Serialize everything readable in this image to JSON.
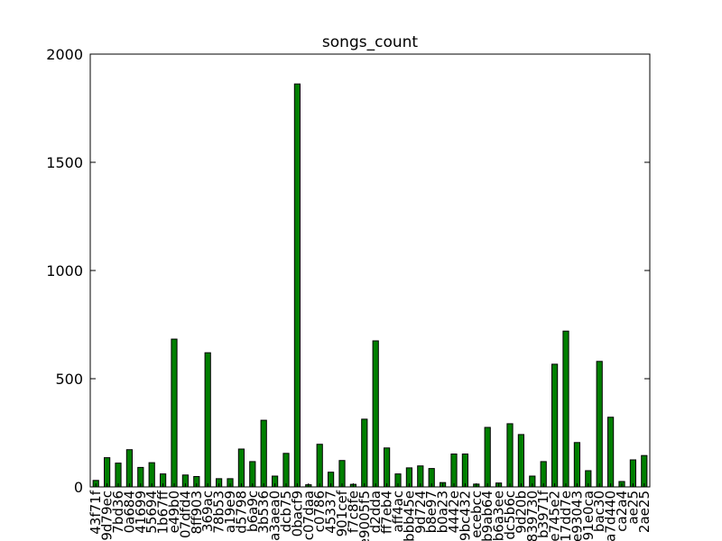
{
  "chart_data": {
    "type": "bar",
    "title": "songs_count",
    "xlabel": "",
    "ylabel": "",
    "ylim": [
      0,
      2000
    ],
    "yticks": [
      0,
      500,
      1000,
      1500,
      2000
    ],
    "grid": false,
    "legend": "none",
    "bar_color": "#007f00",
    "categories": [
      "43f71f",
      "9d79ec",
      "7bd36",
      "0a684",
      "41699",
      "55694",
      "1b67ff",
      "e49b0",
      "07dfd4",
      "8ff903",
      "369ac",
      "78b53",
      "a19e9",
      "d5798",
      "b6a9c",
      "3b536",
      "a3aea0",
      "dcb75",
      "0bacf9",
      "c07daa",
      "c0786",
      "45337",
      "901cef",
      "f7c8fe",
      "e9005f5",
      "d2dda",
      "ff7eb4",
      "aff4ac",
      "bbb45e",
      "9d724",
      "b8e97",
      "b0a23",
      "4442e",
      "9bc432",
      "ecebcc",
      "b9ab64",
      "b6a3ee",
      "dc5b6c",
      "9d20b",
      "839730",
      "b3971f",
      "e745e2",
      "17dd7e",
      "e93043",
      "91e0ca",
      "bac30",
      "a7d440",
      "ca2a4",
      "ae25",
      "2ae25"
    ],
    "values": [
      30,
      135,
      110,
      172,
      90,
      112,
      60,
      683,
      55,
      48,
      620,
      38,
      38,
      175,
      117,
      308,
      50,
      155,
      1862,
      10,
      197,
      68,
      122,
      12,
      313,
      675,
      180,
      60,
      88,
      97,
      85,
      20,
      152,
      152,
      13,
      275,
      18,
      292,
      242,
      50,
      117,
      567,
      720,
      205,
      75,
      580,
      322,
      25,
      125,
      145
    ]
  }
}
